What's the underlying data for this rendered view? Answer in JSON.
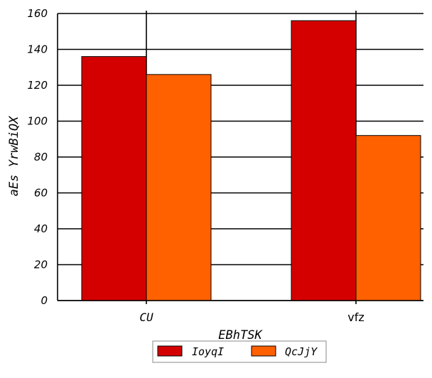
{
  "chart_data": {
    "type": "bar",
    "categories": [
      "CU",
      "vfz"
    ],
    "series": [
      {
        "name": "IoyqI",
        "values": [
          136,
          156
        ],
        "color": "#d40000"
      },
      {
        "name": "QcJjY",
        "values": [
          126,
          92
        ],
        "color": "#ff6000"
      }
    ],
    "xlabel": "EBhTSK",
    "ylabel": "aEs YrwBiQX",
    "ylim": [
      0,
      160
    ],
    "yticks": [
      "0",
      "20",
      "40",
      "60",
      "80",
      "100",
      "120",
      "140",
      "160"
    ],
    "grid": "horizontal and vertical",
    "legend": "bottom-center"
  }
}
